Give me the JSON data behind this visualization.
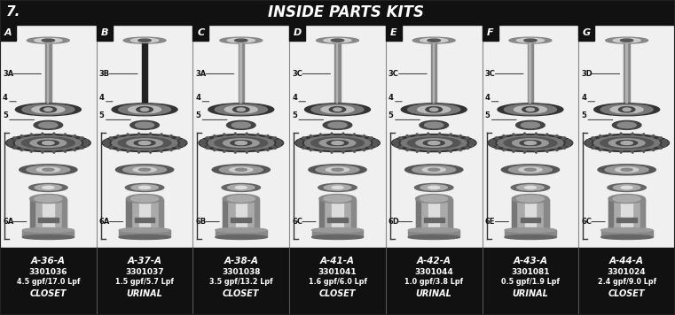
{
  "title": "INSIDE PARTS KITS",
  "section_num": "7.",
  "bg_color": "#d8d8d8",
  "header_bg": "#111111",
  "header_text_color": "#ffffff",
  "footer_bg": "#111111",
  "footer_text_color": "#ffffff",
  "col_bg": "#f0f0f0",
  "columns": [
    {
      "letter": "A",
      "part_label": "3A",
      "part6": "6A",
      "stem_dark": false,
      "model": "A-36-A",
      "part_num": "3301036",
      "flow": "4.5 gpf/17.0 Lpf",
      "type": "CLOSET"
    },
    {
      "letter": "B",
      "part_label": "3B",
      "part6": "6A",
      "stem_dark": true,
      "model": "A-37-A",
      "part_num": "3301037",
      "flow": "1.5 gpf/5.7 Lpf",
      "type": "URINAL"
    },
    {
      "letter": "C",
      "part_label": "3A",
      "part6": "6B",
      "stem_dark": false,
      "model": "A-38-A",
      "part_num": "3301038",
      "flow": "3.5 gpf/13.2 Lpf",
      "type": "CLOSET"
    },
    {
      "letter": "D",
      "part_label": "3C",
      "part6": "6C",
      "stem_dark": false,
      "model": "A-41-A",
      "part_num": "3301041",
      "flow": "1.6 gpf/6.0 Lpf",
      "type": "CLOSET"
    },
    {
      "letter": "E",
      "part_label": "3C",
      "part6": "6D",
      "stem_dark": false,
      "model": "A-42-A",
      "part_num": "3301044",
      "flow": "1.0 gpf/3.8 Lpf",
      "type": "URINAL"
    },
    {
      "letter": "F",
      "part_label": "3C",
      "part6": "6E",
      "stem_dark": false,
      "model": "A-43-A",
      "part_num": "3301081",
      "flow": "0.5 gpf/1.9 Lpf",
      "type": "URINAL"
    },
    {
      "letter": "G",
      "part_label": "3D",
      "part6": "6C",
      "stem_dark": false,
      "model": "A-44-A",
      "part_num": "3301024",
      "flow": "2.4 gpf/9.0 Lpf",
      "type": "CLOSET"
    }
  ]
}
